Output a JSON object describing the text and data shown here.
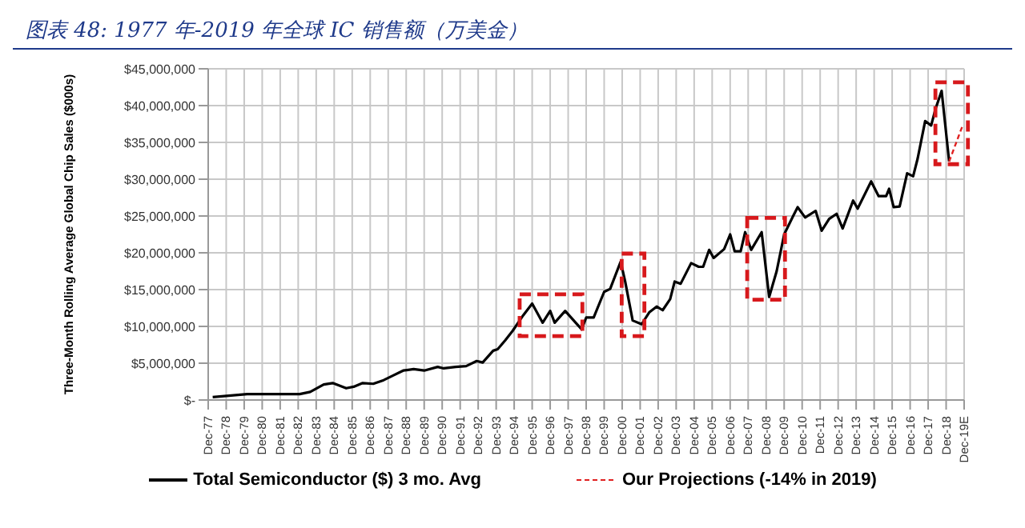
{
  "chart_data": {
    "type": "line",
    "title": "图表 48: 1977 年-2019 年全球 IC 销售额（万美金）",
    "ylabel": "Three-Month Rolling Average Global Chip Sales ($000s)",
    "xlim": [
      "1977-12",
      "2019-12"
    ],
    "xticks": [
      {
        "value": "1977-12",
        "label": "Dec-77"
      },
      {
        "value": "1978-12",
        "label": "Dec-78"
      },
      {
        "value": "1979-12",
        "label": "Dec-79"
      },
      {
        "value": "1980-12",
        "label": "Dec-80"
      },
      {
        "value": "1981-12",
        "label": "Dec-81"
      },
      {
        "value": "1982-12",
        "label": "Dec-82"
      },
      {
        "value": "1983-12",
        "label": "Dec-83"
      },
      {
        "value": "1984-12",
        "label": "Dec-84"
      },
      {
        "value": "1985-12",
        "label": "Dec-85"
      },
      {
        "value": "1986-12",
        "label": "Dec-86"
      },
      {
        "value": "1987-12",
        "label": "Dec-87"
      },
      {
        "value": "1988-12",
        "label": "Dec-88"
      },
      {
        "value": "1989-12",
        "label": "Dec-89"
      },
      {
        "value": "1990-12",
        "label": "Dec-90"
      },
      {
        "value": "1991-12",
        "label": "Dec-91"
      },
      {
        "value": "1992-12",
        "label": "Dec-92"
      },
      {
        "value": "1993-12",
        "label": "Dec-93"
      },
      {
        "value": "1994-12",
        "label": "Dec-94"
      },
      {
        "value": "1995-12",
        "label": "Dec-95"
      },
      {
        "value": "1996-12",
        "label": "Dec-96"
      },
      {
        "value": "1997-12",
        "label": "Dec-97"
      },
      {
        "value": "1998-12",
        "label": "Dec-98"
      },
      {
        "value": "1999-12",
        "label": "Dec-99"
      },
      {
        "value": "2000-12",
        "label": "Dec-00"
      },
      {
        "value": "2001-12",
        "label": "Dec-01"
      },
      {
        "value": "2002-12",
        "label": "Dec-02"
      },
      {
        "value": "2003-12",
        "label": "Dec-03"
      },
      {
        "value": "2004-12",
        "label": "Dec-04"
      },
      {
        "value": "2005-12",
        "label": "Dec-05"
      },
      {
        "value": "2006-12",
        "label": "Dec-06"
      },
      {
        "value": "2007-12",
        "label": "Dec-07"
      },
      {
        "value": "2008-12",
        "label": "Dec-08"
      },
      {
        "value": "2009-12",
        "label": "Dec-09"
      },
      {
        "value": "2010-12",
        "label": "Dec-10"
      },
      {
        "value": "2011-12",
        "label": "Dec-11"
      },
      {
        "value": "2012-12",
        "label": "Dec-12"
      },
      {
        "value": "2013-12",
        "label": "Dec-13"
      },
      {
        "value": "2014-12",
        "label": "Dec-14"
      },
      {
        "value": "2015-12",
        "label": "Dec-15"
      },
      {
        "value": "2016-12",
        "label": "Dec-16"
      },
      {
        "value": "2017-12",
        "label": "Dec-17"
      },
      {
        "value": "2018-12",
        "label": "Dec-18"
      },
      {
        "value": "2019-12",
        "label": "Dec-19E"
      }
    ],
    "ylim": [
      0,
      45000000
    ],
    "yticks": [
      {
        "value": 0,
        "label": "$-"
      },
      {
        "value": 5000000,
        "label": "$5,000,000"
      },
      {
        "value": 10000000,
        "label": "$10,000,000"
      },
      {
        "value": 15000000,
        "label": "$15,000,000"
      },
      {
        "value": 20000000,
        "label": "$20,000,000"
      },
      {
        "value": 25000000,
        "label": "$25,000,000"
      },
      {
        "value": 30000000,
        "label": "$30,000,000"
      },
      {
        "value": 35000000,
        "label": "$35,000,000"
      },
      {
        "value": 40000000,
        "label": "$40,000,000"
      },
      {
        "value": 45000000,
        "label": "$45,000,000"
      }
    ],
    "grid": true,
    "legend": "bottom",
    "marker": "none",
    "series": [
      {
        "name": "Total Semiconductor ($) 3 mo. Avg",
        "color": "#000000",
        "line_style": "solid",
        "x": [
          "1978-03",
          "1980-02",
          "1983-01",
          "1983-08",
          "1984-05",
          "1984-11",
          "1985-08",
          "1986-01",
          "1986-07",
          "1987-02",
          "1987-09",
          "1988-03",
          "1988-10",
          "1989-05",
          "1989-12",
          "1990-09",
          "1991-01",
          "1991-09",
          "1992-04",
          "1992-11",
          "1993-03",
          "1993-10",
          "1994-01",
          "1994-06",
          "1994-11",
          "1995-06",
          "1995-12",
          "1996-07",
          "1996-12",
          "1997-03",
          "1997-10",
          "1998-05",
          "1998-09",
          "1998-12",
          "1999-05",
          "1999-12",
          "2000-04",
          "2000-11",
          "2001-02",
          "2001-07",
          "2002-01",
          "2002-06",
          "2002-11",
          "2003-03",
          "2003-08",
          "2003-11",
          "2004-03",
          "2004-10",
          "2005-03",
          "2005-06",
          "2005-10",
          "2006-01",
          "2006-08",
          "2006-12",
          "2007-03",
          "2007-07",
          "2007-10",
          "2008-02",
          "2008-09",
          "2009-02",
          "2009-07",
          "2009-12",
          "2010-06",
          "2010-09",
          "2011-02",
          "2011-09",
          "2012-01",
          "2012-06",
          "2012-11",
          "2013-03",
          "2013-10",
          "2014-01",
          "2014-10",
          "2015-03",
          "2015-08",
          "2015-10",
          "2016-01",
          "2016-05",
          "2016-10",
          "2017-02",
          "2017-05",
          "2017-10",
          "2018-02",
          "2018-05",
          "2018-09",
          "2019-02"
        ],
        "values": [
          400000,
          800000,
          800000,
          1100000,
          2100000,
          2300000,
          1600000,
          1800000,
          2300000,
          2200000,
          2700000,
          3300000,
          4000000,
          4200000,
          4000000,
          4500000,
          4300000,
          4500000,
          4600000,
          5300000,
          5100000,
          6700000,
          6900000,
          8100000,
          9400000,
          11500000,
          13100000,
          10500000,
          12100000,
          10500000,
          12100000,
          10500000,
          9600000,
          11200000,
          11200000,
          14700000,
          15100000,
          18800000,
          16100000,
          10800000,
          10300000,
          11900000,
          12700000,
          12200000,
          13700000,
          16100000,
          15800000,
          18600000,
          18100000,
          18100000,
          20400000,
          19300000,
          20500000,
          22500000,
          20200000,
          20200000,
          22800000,
          20400000,
          22800000,
          14000000,
          17500000,
          22500000,
          25000000,
          26200000,
          24800000,
          25700000,
          23000000,
          24600000,
          25300000,
          23300000,
          27100000,
          26000000,
          29700000,
          27700000,
          27700000,
          28700000,
          26200000,
          26300000,
          30800000,
          30400000,
          32800000,
          37900000,
          37300000,
          39600000,
          42000000,
          32400000
        ]
      },
      {
        "name": "Our Projections (-14% in 2019)",
        "color": "#e02020",
        "line_style": "dashed",
        "x": [
          "2019-02",
          "2019-11"
        ],
        "values": [
          32400000,
          37300000
        ]
      }
    ]
  }
}
